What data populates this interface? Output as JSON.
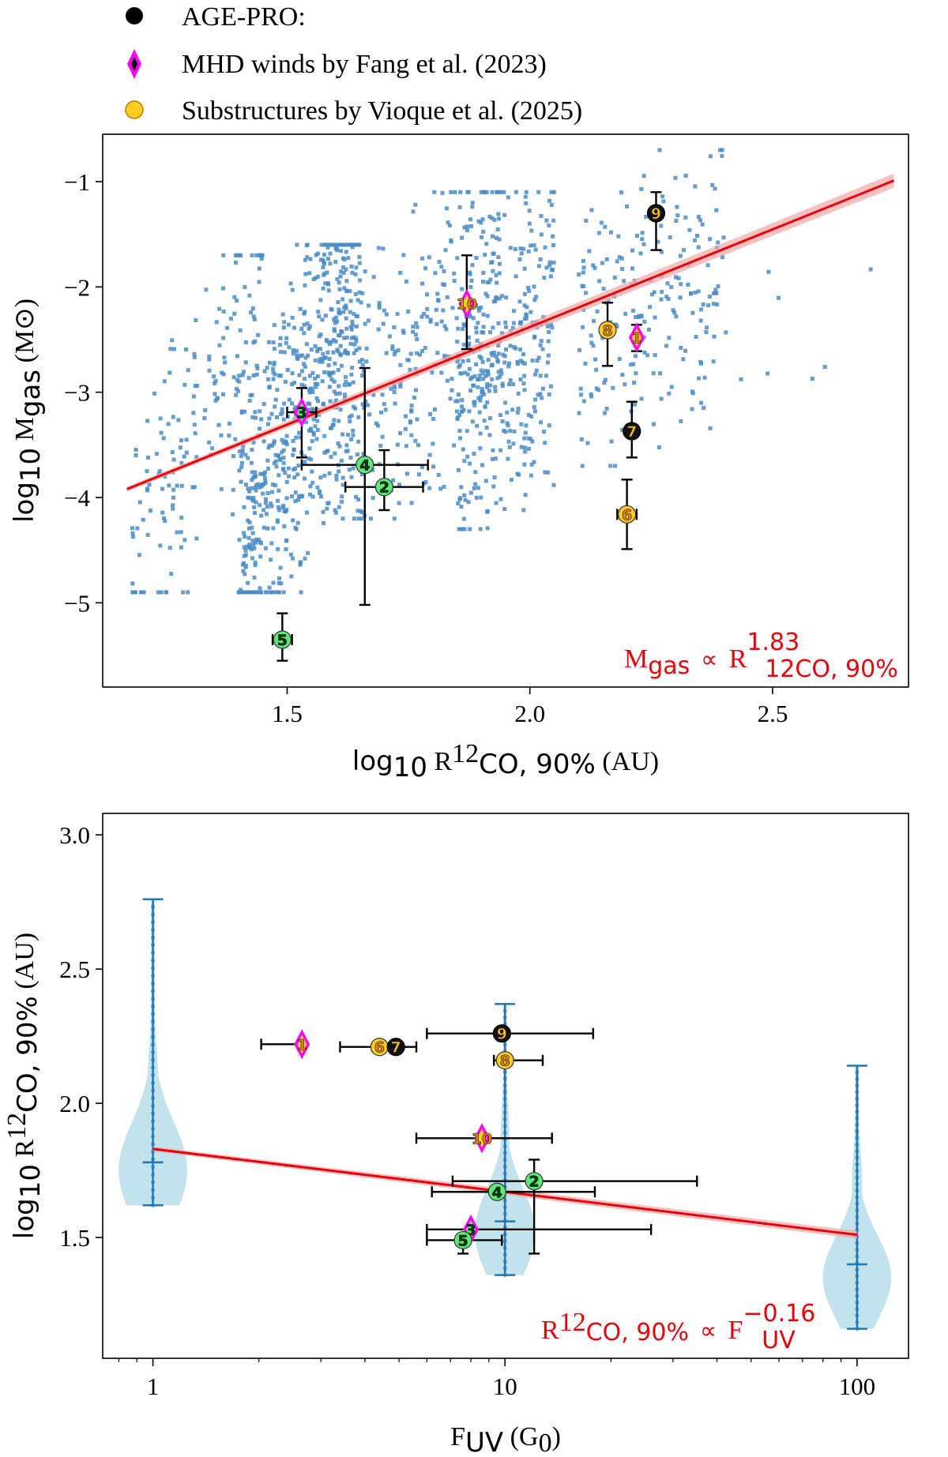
{
  "legend": {
    "items": [
      {
        "label": "AGE-PRO:",
        "marker": "circle",
        "color": "#000000"
      },
      {
        "label": "MHD winds by Fang et al. (2023)",
        "marker": "diamond",
        "color": "#ff00ff"
      },
      {
        "label": "Substructures by Vioque et al. (2025)",
        "marker": "circle",
        "color": "#ffcc22"
      }
    ]
  },
  "colors": {
    "scatter": "#4a8cc6",
    "fit": "#e8000b",
    "fit_band": "#f4a6a6",
    "violin_fill": "#add8e6",
    "violin_line": "#1f77b4",
    "green_point": "#5ee87a",
    "orange_point": "#ffcc22",
    "black_point": "#111111",
    "diamond": "#ff00ff"
  },
  "chart_data": [
    {
      "type": "scatter",
      "xlabel": "log₁₀ R¹²CO, 90% (AU)",
      "ylabel": "log₁₀ Mₘₐₛ (M⊙)",
      "xlabel_parts": {
        "prefix": "log",
        "sub": "10",
        "main": " R",
        "sup_iso": "12",
        "subscript": "CO, 90%",
        "unit": " (AU)"
      },
      "ylabel_parts": {
        "prefix": "log",
        "sub": "10",
        "main": " M",
        "subscript": "gas",
        "unit": " (M⊙)"
      },
      "xlim": [
        1.12,
        2.78
      ],
      "ylim": [
        -5.8,
        -0.55
      ],
      "xticks": [
        1.5,
        2.0,
        2.5
      ],
      "xtick_labels": [
        "1.5",
        "2.0",
        "2.5"
      ],
      "yticks": [
        -5,
        -4,
        -3,
        -2,
        -1
      ],
      "ytick_labels": [
        "−5",
        "−4",
        "−3",
        "−2",
        "−1"
      ],
      "annotation": {
        "main": "M",
        "main_sub": "gas",
        "prop": "∝",
        "r": "R",
        "r_sup": "1.83",
        "r_sub": "12CO, 90%"
      },
      "fit": {
        "slope": 1.83,
        "x": [
          1.17,
          2.75
        ],
        "y": [
          -3.92,
          -0.99
        ]
      },
      "background_population": {
        "description": "simulated disks, blue squares",
        "clusters": [
          {
            "x_range": [
              1.18,
              1.45
            ],
            "y_range": [
              -4.9,
              -1.7
            ],
            "trend": 8.5,
            "n": 180
          },
          {
            "x_range": [
              1.4,
              1.65
            ],
            "y_range": [
              -4.9,
              -1.6
            ],
            "trend": 11.0,
            "n": 650
          },
          {
            "x_range": [
              1.6,
              1.95
            ],
            "y_range": [
              -4.2,
              -1.1
            ],
            "trend": 5.5,
            "n": 320
          },
          {
            "x_range": [
              1.85,
              2.05
            ],
            "y_range": [
              -4.3,
              -1.1
            ],
            "trend": 4.0,
            "n": 330
          },
          {
            "x_range": [
              2.1,
              2.4
            ],
            "y_range": [
              -3.7,
              -0.7
            ],
            "trend": 3.0,
            "n": 210
          },
          {
            "x_range": [
              2.4,
              2.75
            ],
            "y_range": [
              -3.3,
              -1.3
            ],
            "trend": 0.0,
            "n": 8
          }
        ]
      },
      "points": [
        {
          "id": "1",
          "x": 2.22,
          "y": -2.48,
          "type": "diamond",
          "color": "orange",
          "xerr": 0.0,
          "yerr": [
            0.13,
            0.12
          ]
        },
        {
          "id": "2",
          "x": 1.7,
          "y": -3.9,
          "type": "circle",
          "color": "green",
          "xerr": 0.08,
          "yerr": [
            0.22,
            0.35
          ]
        },
        {
          "id": "3",
          "x": 1.53,
          "y": -3.19,
          "type": "diamond",
          "color": "green",
          "xerr": 0.03,
          "yerr": [
            0.43,
            0.23
          ]
        },
        {
          "id": "4",
          "x": 1.66,
          "y": -3.69,
          "type": "circle",
          "color": "green",
          "xerr": 0.13,
          "yerr": [
            1.33,
            0.92
          ]
        },
        {
          "id": "5",
          "x": 1.49,
          "y": -5.35,
          "type": "circle",
          "color": "green",
          "xerr": 0.02,
          "yerr": [
            0.2,
            0.25
          ]
        },
        {
          "id": "6",
          "x": 2.2,
          "y": -4.16,
          "type": "circle",
          "color": "orange",
          "xerr": 0.02,
          "yerr": [
            0.33,
            0.33
          ]
        },
        {
          "id": "7",
          "x": 2.21,
          "y": -3.37,
          "type": "circle",
          "color": "black",
          "xerr": 0.0,
          "yerr": [
            0.25,
            0.28
          ]
        },
        {
          "id": "8",
          "x": 2.16,
          "y": -2.41,
          "type": "circle",
          "color": "orange",
          "xerr": 0.0,
          "yerr": [
            0.34,
            0.26
          ]
        },
        {
          "id": "9",
          "x": 2.26,
          "y": -1.3,
          "type": "circle",
          "color": "black",
          "xerr": 0.0,
          "yerr": [
            0.35,
            0.2
          ]
        },
        {
          "id": "10",
          "x": 1.87,
          "y": -2.16,
          "type": "diamond",
          "color": "orange",
          "xerr": 0.0,
          "yerr": [
            0.43,
            0.46
          ]
        }
      ]
    },
    {
      "type": "scatter",
      "xlabel": "Fᵤᵥ (G₀)",
      "ylabel": "log₁₀ R¹²CO, 90% (AU)",
      "xlabel_parts": {
        "main": "F",
        "sub": "UV",
        "unit": " (G",
        "unit_sub": "0",
        "close": ")"
      },
      "ylabel_parts": {
        "prefix": "log",
        "sub": "10",
        "main": " R",
        "sup_iso": "12",
        "subscript": "CO, 90%",
        "unit": " (AU)"
      },
      "xscale": "log",
      "xlim": [
        0.72,
        140
      ],
      "ylim": [
        1.05,
        3.08
      ],
      "xticks": [
        1,
        10,
        100
      ],
      "xtick_labels": [
        "1",
        "10",
        "100"
      ],
      "yticks": [
        1.5,
        2.0,
        2.5,
        3.0
      ],
      "ytick_labels": [
        "1.5",
        "2.0",
        "2.5",
        "3.0"
      ],
      "annotation": {
        "r": "R",
        "r_sup": "12",
        "r_sub": "CO, 90%",
        "prop": "∝",
        "f": "F",
        "f_sup": "−0.16",
        "f_sub": "UV"
      },
      "fit": {
        "slope": -0.16,
        "x": [
          1,
          100
        ],
        "y": [
          1.83,
          1.51
        ]
      },
      "violins": [
        {
          "x": 1,
          "min": 1.62,
          "max": 2.76,
          "median": 1.78,
          "width_frac": 0.085,
          "peak": 1.75
        },
        {
          "x": 10,
          "min": 1.36,
          "max": 2.37,
          "median": 1.56,
          "width_frac": 0.075,
          "peak": 1.52
        },
        {
          "x": 100,
          "min": 1.16,
          "max": 2.14,
          "median": 1.4,
          "width_frac": 0.085,
          "peak": 1.35
        }
      ],
      "points": [
        {
          "id": "1",
          "x": 2.65,
          "y": 2.22,
          "type": "diamond",
          "color": "orange",
          "xerr": [
            0.62,
            0.0
          ],
          "yerr": 0.0
        },
        {
          "id": "2",
          "x": 12.1,
          "y": 1.71,
          "type": "circle",
          "color": "green",
          "xerr": [
            5.0,
            23.0
          ],
          "yerr": [
            0.27,
            0.08
          ]
        },
        {
          "id": "3",
          "x": 8.0,
          "y": 1.53,
          "type": "diamond",
          "color": "green",
          "xerr": [
            2.0,
            18.0
          ],
          "yerr": 0.0
        },
        {
          "id": "4",
          "x": 9.5,
          "y": 1.67,
          "type": "circle",
          "color": "green",
          "xerr": [
            3.3,
            8.5
          ],
          "yerr": 0.0
        },
        {
          "id": "5",
          "x": 7.6,
          "y": 1.49,
          "type": "circle",
          "color": "green",
          "xerr": [
            1.6,
            2.2
          ],
          "yerr": [
            0.05,
            0.0
          ]
        },
        {
          "id": "6",
          "x": 4.4,
          "y": 2.21,
          "type": "circle",
          "color": "orange",
          "xerr": [
            1.0,
            0.0
          ],
          "yerr": 0.0
        },
        {
          "id": "7",
          "x": 4.9,
          "y": 2.21,
          "type": "circle",
          "color": "black",
          "xerr": [
            0.0,
            0.7
          ],
          "yerr": 0.0
        },
        {
          "id": "8",
          "x": 10.0,
          "y": 2.16,
          "type": "circle",
          "color": "orange",
          "xerr": [
            0.7,
            2.8
          ],
          "yerr": 0.0
        },
        {
          "id": "9",
          "x": 9.8,
          "y": 2.26,
          "type": "circle",
          "color": "black",
          "xerr": [
            3.8,
            8.0
          ],
          "yerr": 0.0
        },
        {
          "id": "10",
          "x": 8.6,
          "y": 1.87,
          "type": "diamond",
          "color": "orange",
          "xerr": [
            3.0,
            5.0
          ],
          "yerr": 0.0
        }
      ]
    }
  ]
}
